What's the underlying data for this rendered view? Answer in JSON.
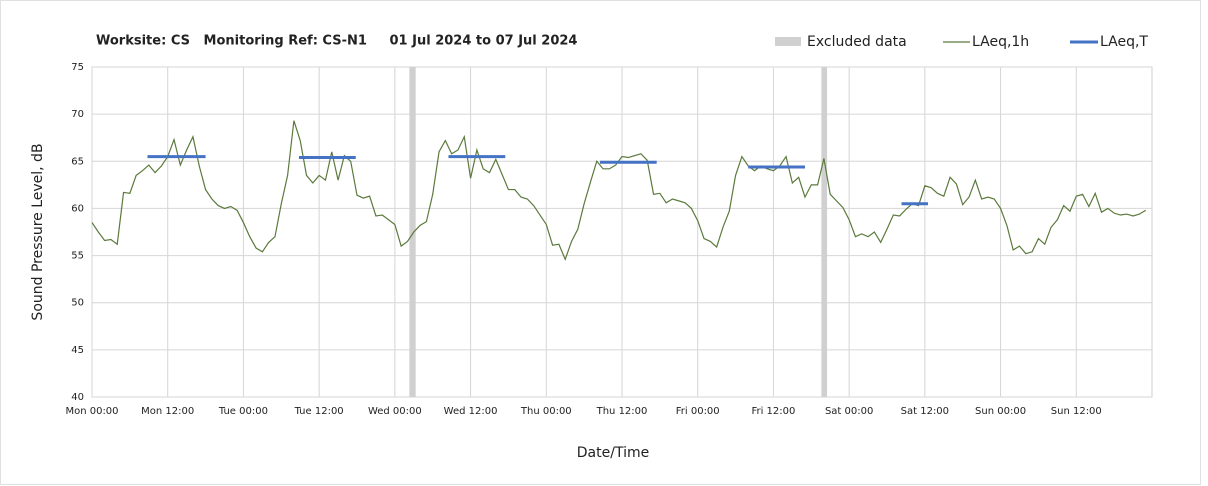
{
  "chart_data": {
    "type": "line",
    "title": "Worksite: CS   Monitoring Ref: CS-N1     01 Jul 2024 to 07 Jul 2024",
    "x_label": "Date/Time",
    "y_label": "Sound Pressure Level, dB",
    "xlim": [
      0,
      168
    ],
    "ylim": [
      40,
      75
    ],
    "yticks": [
      40,
      45,
      50,
      55,
      60,
      65,
      70,
      75
    ],
    "xticks": [
      {
        "value": 0,
        "label": "Mon 00:00"
      },
      {
        "value": 12,
        "label": "Mon 12:00"
      },
      {
        "value": 24,
        "label": "Tue 00:00"
      },
      {
        "value": 36,
        "label": "Tue 12:00"
      },
      {
        "value": 48,
        "label": "Wed 00:00"
      },
      {
        "value": 60,
        "label": "Wed 12:00"
      },
      {
        "value": 72,
        "label": "Thu 00:00"
      },
      {
        "value": 84,
        "label": "Thu 12:00"
      },
      {
        "value": 96,
        "label": "Fri 00:00"
      },
      {
        "value": 108,
        "label": "Fri 12:00"
      },
      {
        "value": 120,
        "label": "Sat 00:00"
      },
      {
        "value": 132,
        "label": "Sat 12:00"
      },
      {
        "value": 144,
        "label": "Sun 00:00"
      },
      {
        "value": 156,
        "label": "Sun 12:00"
      }
    ],
    "grid": true,
    "excluded": {
      "name": "Excluded data",
      "color": "#d0d0d0",
      "x_start": [
        50.3,
        115.6
      ],
      "x_end": [
        51.3,
        116.5
      ]
    },
    "series": [
      {
        "name": "LAeq,1h",
        "color": "#5b7a3c",
        "x": [
          0,
          1,
          2,
          3,
          4,
          5,
          6,
          7,
          8,
          9,
          10,
          11,
          12,
          13,
          14,
          15,
          16,
          17,
          18,
          19,
          20,
          21,
          22,
          23,
          24,
          25,
          26,
          27,
          28,
          29,
          30,
          31,
          32,
          33,
          34,
          35,
          36,
          37,
          38,
          39,
          40,
          41,
          42,
          43,
          44,
          45,
          46,
          47,
          48,
          49,
          50,
          51,
          52,
          53,
          54,
          55,
          56,
          57,
          58,
          59,
          60,
          61,
          62,
          63,
          64,
          65,
          66,
          67,
          68,
          69,
          70,
          71,
          72,
          73,
          74,
          75,
          76,
          77,
          78,
          79,
          80,
          81,
          82,
          83,
          84,
          85,
          86,
          87,
          88,
          89,
          90,
          91,
          92,
          93,
          94,
          95,
          96,
          97,
          98,
          99,
          100,
          101,
          102,
          103,
          104,
          105,
          106,
          107,
          108,
          109,
          110,
          111,
          112,
          113,
          114,
          115,
          116,
          117,
          118,
          119,
          120,
          121,
          122,
          123,
          124,
          125,
          126,
          127,
          128,
          129,
          130,
          131,
          132,
          133,
          134,
          135,
          136,
          137,
          138,
          139,
          140,
          141,
          142,
          143,
          144,
          145,
          146,
          147,
          148,
          149,
          150,
          151,
          152,
          153,
          154,
          155,
          156,
          157,
          158,
          159,
          160,
          161,
          162,
          163,
          164,
          165,
          166,
          167
        ],
        "values": [
          58.5,
          57.5,
          56.6,
          56.7,
          56.2,
          61.7,
          61.6,
          63.5,
          64,
          64.6,
          63.8,
          64.5,
          65.5,
          67.3,
          64.6,
          66.2,
          67.6,
          64.5,
          62,
          61,
          60.3,
          60,
          60.2,
          59.8,
          58.5,
          57,
          55.8,
          55.4,
          56.4,
          57,
          60.5,
          63.5,
          69.3,
          67.2,
          63.5,
          62.7,
          63.5,
          63,
          66,
          63,
          65.6,
          65,
          61.4,
          61.1,
          61.3,
          59.2,
          59.3,
          58.8,
          58.3,
          56,
          56.5,
          57.5,
          58.2,
          58.6,
          61.5,
          66,
          67.2,
          65.8,
          66.2,
          67.6,
          63.2,
          66.2,
          64.2,
          63.8,
          65.2,
          63.6,
          62,
          62,
          61.2,
          61,
          60.3,
          59.3,
          58.3,
          56.1,
          56.2,
          54.6,
          56.5,
          57.8,
          60.5,
          62.8,
          65,
          64.2,
          64.2,
          64.6,
          65.5,
          65.4,
          65.6,
          65.8,
          65.1,
          61.5,
          61.6,
          60.6,
          61,
          60.8,
          60.6,
          60,
          58.7,
          56.8,
          56.5,
          55.9,
          58,
          59.7,
          63.5,
          65.5,
          64.5,
          64,
          64.5,
          64.2,
          64,
          64.5,
          65.5,
          62.7,
          63.3,
          61.2,
          62.5,
          62.5,
          65.3,
          61.5,
          60.8,
          60.1,
          58.8,
          57,
          57.3,
          57,
          57.5,
          56.4,
          57.8,
          59.3,
          59.2,
          59.9,
          60.5,
          60.3,
          62.4,
          62.2,
          61.6,
          61.3,
          63.3,
          62.6,
          60.4,
          61.2,
          63,
          61,
          61.2,
          61,
          60,
          58.2,
          55.6,
          56,
          55.2,
          55.4,
          56.8,
          56.2,
          58,
          58.8,
          60.3,
          59.7,
          61.3,
          61.5,
          60.2,
          61.6,
          59.6,
          60,
          59.5,
          59.3,
          59.4,
          59.2,
          59.4,
          59.8
        ]
      },
      {
        "name": "LAeq,T",
        "color": "#4472c4",
        "x_start": [
          8.8,
          32.8,
          56.5,
          80.5,
          104,
          128.3
        ],
        "x_end": [
          18,
          41.8,
          65.5,
          89.5,
          113,
          132.5
        ],
        "values": [
          65.5,
          65.4,
          65.5,
          64.9,
          64.4,
          60.5
        ]
      }
    ]
  }
}
